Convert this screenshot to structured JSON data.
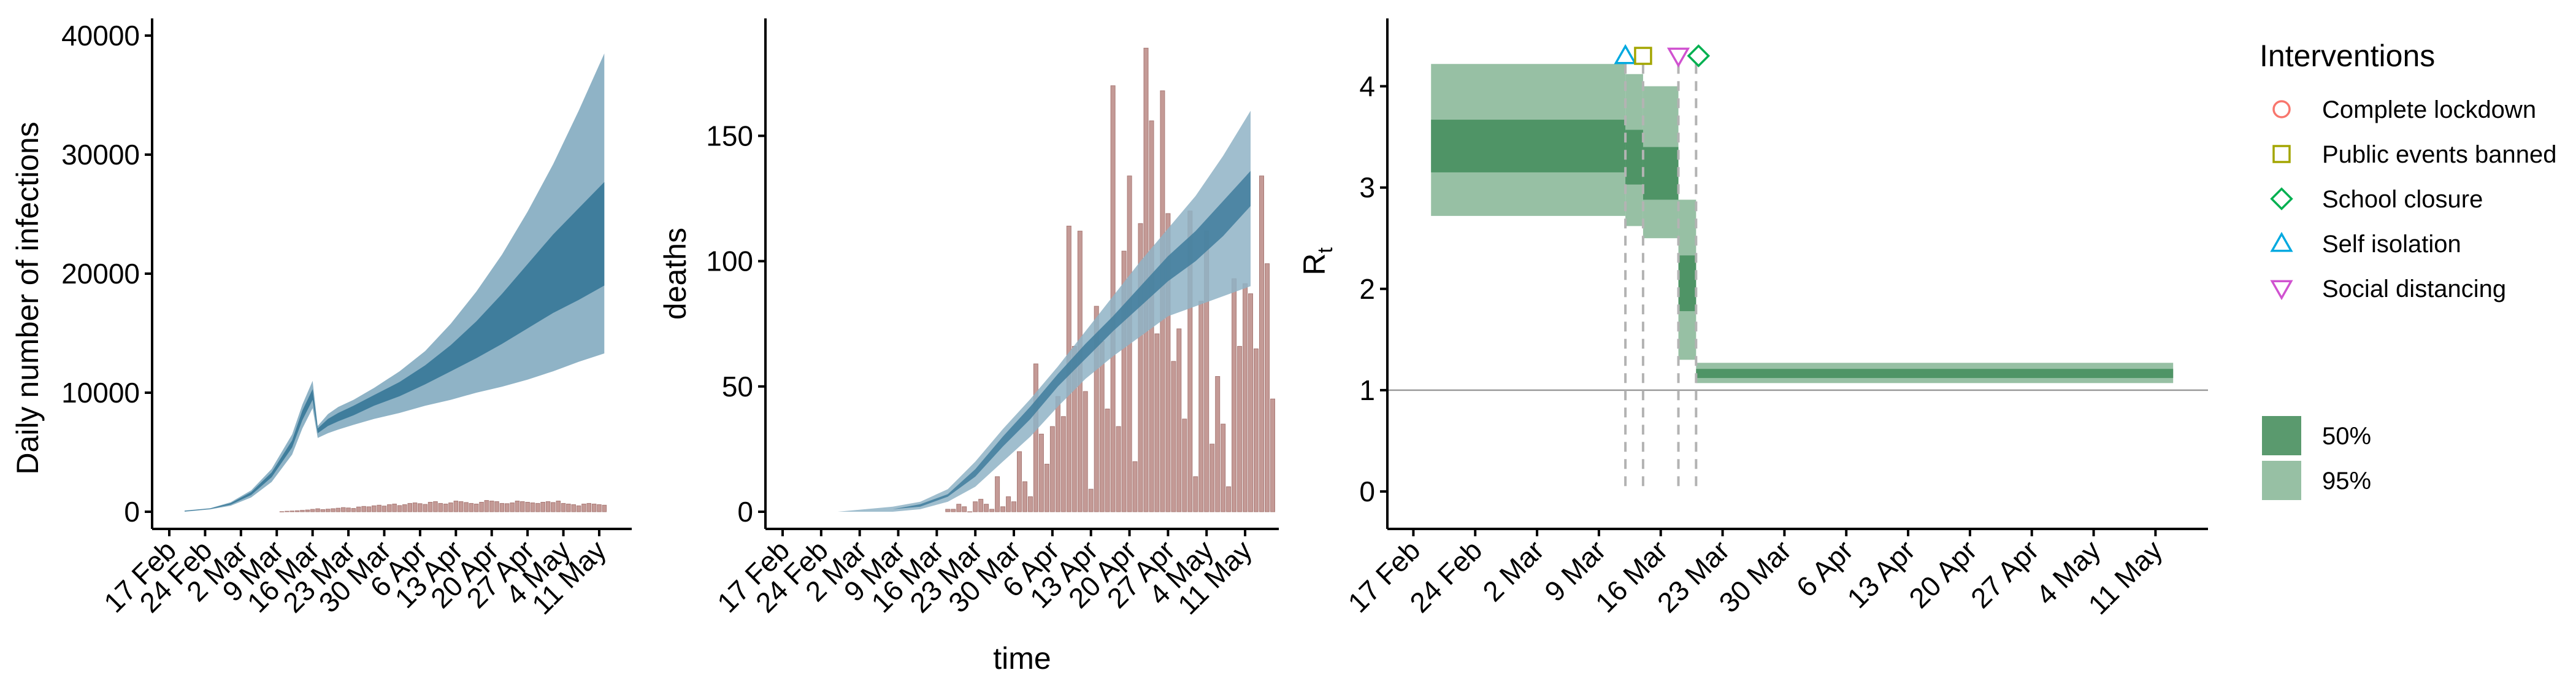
{
  "chart_data": [
    {
      "type": "area",
      "ylabel": "Daily number of infections",
      "xlabel": "",
      "ylim": [
        0,
        40000
      ],
      "yticks": [
        0,
        10000,
        20000,
        30000,
        40000
      ],
      "xlim": [
        0,
        87
      ],
      "xticks": [
        {
          "day": 0,
          "label": "17 Feb"
        },
        {
          "day": 7,
          "label": "24 Feb"
        },
        {
          "day": 14,
          "label": "2 Mar"
        },
        {
          "day": 21,
          "label": "9 Mar"
        },
        {
          "day": 28,
          "label": "16 Mar"
        },
        {
          "day": 35,
          "label": "23 Mar"
        },
        {
          "day": 42,
          "label": "30 Mar"
        },
        {
          "day": 49,
          "label": "6 Apr"
        },
        {
          "day": 56,
          "label": "13 Apr"
        },
        {
          "day": 63,
          "label": "20 Apr"
        },
        {
          "day": 70,
          "label": "27 Apr"
        },
        {
          "day": 77,
          "label": "4 May"
        },
        {
          "day": 84,
          "label": "11 May"
        }
      ],
      "band95": {
        "x": [
          3,
          8,
          12,
          16,
          20,
          24,
          26,
          28,
          29,
          31,
          33,
          36,
          40,
          45,
          50,
          55,
          60,
          65,
          70,
          75,
          80,
          85
        ],
        "lower": [
          0,
          200,
          500,
          1200,
          2500,
          4800,
          7000,
          8700,
          6200,
          6600,
          6900,
          7300,
          7800,
          8300,
          8900,
          9400,
          10000,
          10500,
          11100,
          11800,
          12600,
          13300
        ],
        "upper": [
          100,
          300,
          800,
          1800,
          3600,
          6500,
          9000,
          11000,
          7200,
          8200,
          8800,
          9400,
          10400,
          11800,
          13500,
          15800,
          18500,
          21600,
          25200,
          29200,
          33700,
          38500
        ]
      },
      "band50": {
        "x": [
          3,
          8,
          12,
          16,
          20,
          24,
          26,
          28,
          29,
          31,
          33,
          36,
          40,
          45,
          50,
          55,
          60,
          65,
          70,
          75,
          80,
          85
        ],
        "lower": [
          30,
          230,
          600,
          1400,
          2900,
          5400,
          7700,
          9400,
          6600,
          7200,
          7600,
          8100,
          8900,
          9700,
          10700,
          11800,
          12900,
          14100,
          15400,
          16700,
          17800,
          19000
        ],
        "upper": [
          80,
          280,
          720,
          1650,
          3300,
          6000,
          8500,
          10300,
          7000,
          7800,
          8300,
          8900,
          9800,
          10900,
          12300,
          14000,
          16000,
          18300,
          20800,
          23300,
          25500,
          27700
        ]
      },
      "reported_bars": {
        "start_day": 22,
        "values": [
          10,
          40,
          60,
          80,
          120,
          150,
          200,
          250,
          180,
          220,
          260,
          300,
          350,
          320,
          280,
          400,
          450,
          420,
          500,
          550,
          480,
          600,
          650,
          520,
          600,
          700,
          750,
          680,
          620,
          800,
          850,
          700,
          650,
          750,
          900,
          850,
          780,
          700,
          650,
          800,
          950,
          900,
          850,
          700,
          680,
          750,
          900,
          850,
          800,
          750,
          700,
          800,
          850,
          780,
          900,
          700,
          650,
          600,
          500,
          650,
          700,
          650,
          600,
          550
        ]
      }
    },
    {
      "type": "bar",
      "ylabel": "deaths",
      "xlabel": "time",
      "ylim": [
        0,
        190
      ],
      "yticks": [
        0,
        50,
        100,
        150
      ],
      "xlim": [
        0,
        87
      ],
      "xticks": [
        {
          "day": 0,
          "label": "17 Feb"
        },
        {
          "day": 7,
          "label": "24 Feb"
        },
        {
          "day": 14,
          "label": "2 Mar"
        },
        {
          "day": 21,
          "label": "9 Mar"
        },
        {
          "day": 28,
          "label": "16 Mar"
        },
        {
          "day": 35,
          "label": "23 Mar"
        },
        {
          "day": 42,
          "label": "30 Mar"
        },
        {
          "day": 49,
          "label": "6 Apr"
        },
        {
          "day": 56,
          "label": "13 Apr"
        },
        {
          "day": 63,
          "label": "20 Apr"
        },
        {
          "day": 70,
          "label": "27 Apr"
        },
        {
          "day": 77,
          "label": "4 May"
        },
        {
          "day": 84,
          "label": "11 May"
        }
      ],
      "band95": {
        "x": [
          10,
          20,
          25,
          30,
          35,
          40,
          45,
          50,
          55,
          60,
          65,
          70,
          75,
          80,
          85
        ],
        "lower": [
          0,
          0,
          1,
          4,
          10,
          20,
          30,
          42,
          53,
          62,
          70,
          78,
          82,
          86,
          90
        ],
        "upper": [
          0,
          2,
          4,
          9,
          20,
          33,
          45,
          58,
          72,
          86,
          100,
          113,
          126,
          142,
          160
        ]
      },
      "band50": {
        "x": [
          10,
          20,
          25,
          30,
          35,
          40,
          45,
          50,
          55,
          60,
          65,
          70,
          75,
          80,
          85
        ],
        "lower": [
          0,
          1,
          2,
          6,
          14,
          26,
          37,
          50,
          61,
          72,
          82,
          92,
          100,
          110,
          122
        ],
        "upper": [
          0,
          1,
          3,
          7,
          17,
          30,
          42,
          55,
          67,
          78,
          90,
          102,
          112,
          124,
          136
        ]
      },
      "bars": {
        "start_day": 30,
        "values": [
          1,
          1,
          3,
          2,
          0,
          4,
          5,
          3,
          1,
          14,
          2,
          6,
          4,
          24,
          12,
          6,
          59,
          31,
          19,
          34,
          46,
          38,
          114,
          66,
          112,
          48,
          9,
          82,
          68,
          41,
          170,
          34,
          104,
          134,
          20,
          115,
          185,
          156,
          71,
          168,
          119,
          60,
          73,
          37,
          120,
          14,
          84,
          112,
          27,
          54,
          35,
          10,
          93,
          66,
          91,
          87,
          65,
          134,
          99,
          45
        ]
      }
    },
    {
      "type": "area",
      "ylabel": "R",
      "ylabel_sub": "t",
      "xlabel": "",
      "ylim": [
        -0.2,
        4.5
      ],
      "yticks": [
        0,
        1,
        2,
        3,
        4
      ],
      "xlim": [
        -1,
        88
      ],
      "xticks": [
        {
          "day": 0,
          "label": "17 Feb"
        },
        {
          "day": 7,
          "label": "24 Feb"
        },
        {
          "day": 14,
          "label": "2 Mar"
        },
        {
          "day": 21,
          "label": "9 Mar"
        },
        {
          "day": 28,
          "label": "16 Mar"
        },
        {
          "day": 35,
          "label": "23 Mar"
        },
        {
          "day": 42,
          "label": "30 Mar"
        },
        {
          "day": 49,
          "label": "6 Apr"
        },
        {
          "day": 56,
          "label": "13 Apr"
        },
        {
          "day": 63,
          "label": "20 Apr"
        },
        {
          "day": 70,
          "label": "27 Apr"
        },
        {
          "day": 77,
          "label": "4 May"
        },
        {
          "day": 84,
          "label": "11 May"
        }
      ],
      "reference_line": 1,
      "segments": [
        {
          "start": 2,
          "end": 24,
          "lo95": 2.72,
          "hi95": 4.22,
          "lo50": 3.15,
          "hi50": 3.67
        },
        {
          "start": 24,
          "end": 26,
          "lo95": 2.62,
          "hi95": 4.12,
          "lo50": 3.03,
          "hi50": 3.57
        },
        {
          "start": 26,
          "end": 30,
          "lo95": 2.5,
          "hi95": 4.0,
          "lo50": 2.88,
          "hi50": 3.4
        },
        {
          "start": 30,
          "end": 32,
          "lo95": 1.3,
          "hi95": 2.88,
          "lo50": 1.78,
          "hi50": 2.33
        },
        {
          "start": 32,
          "end": 86,
          "lo95": 1.07,
          "hi95": 1.27,
          "lo50": 1.12,
          "hi50": 1.21
        }
      ],
      "interventions": [
        {
          "name": "Self isolation",
          "day": 24,
          "shape": "triangle-up",
          "color": "#00a9e0"
        },
        {
          "name": "Public events banned",
          "day": 26,
          "shape": "square",
          "color": "#a3a500"
        },
        {
          "name": "Social distancing",
          "day": 30,
          "shape": "triangle-down",
          "color": "#d052d0"
        },
        {
          "name": "School closure",
          "day": 32,
          "shape": "diamond",
          "color": "#00b050"
        }
      ],
      "legend": {
        "title": "Interventions",
        "items": [
          {
            "label": "Complete lockdown",
            "shape": "circle",
            "color": "#f8766d"
          },
          {
            "label": "Public events banned",
            "shape": "square",
            "color": "#a3a500"
          },
          {
            "label": "School closure",
            "shape": "diamond",
            "color": "#00b050"
          },
          {
            "label": "Self isolation",
            "shape": "triangle-up",
            "color": "#00a9e0"
          },
          {
            "label": "Social distancing",
            "shape": "triangle-down",
            "color": "#d052d0"
          }
        ],
        "ci_items": [
          {
            "label": "50%",
            "color": "#5a9a6e"
          },
          {
            "label": "95%",
            "color": "#97c0a4"
          }
        ]
      }
    }
  ],
  "colors": {
    "blue95": "#8fb3c6",
    "blue50": "#3f7d9c",
    "bar": "#c49a96",
    "bar_stroke": "#a97a76",
    "green95": "#97c0a4",
    "green50": "#4f9466",
    "dash": "#b3b3b3",
    "refline": "#9a9a9a"
  }
}
